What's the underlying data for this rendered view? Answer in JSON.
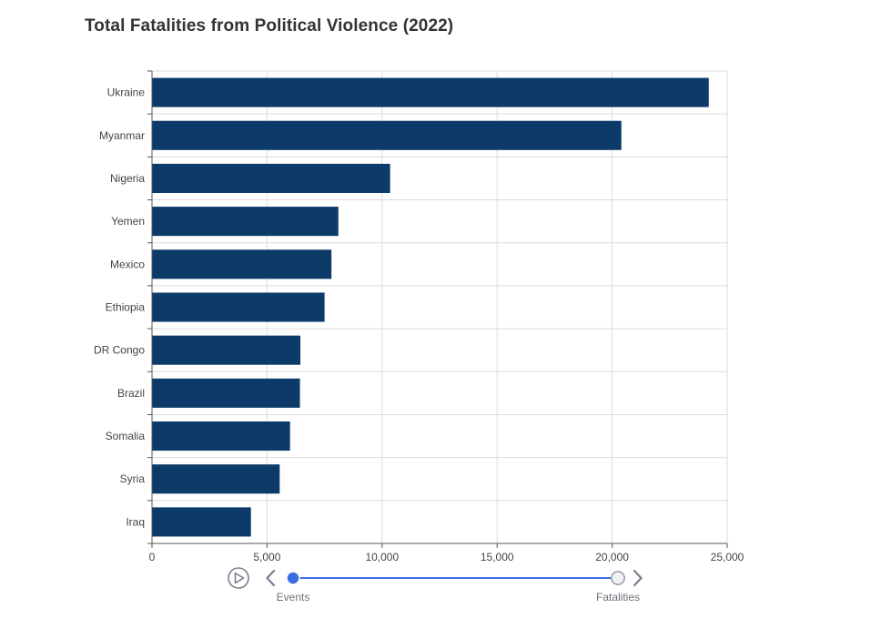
{
  "colors": {
    "bar": "#0d3b69",
    "grid": "#dcdcdc",
    "axis": "#555555",
    "timeline_accent": "#3d6ee0",
    "timeline_control": "#7a7f8e"
  },
  "chart_data": {
    "type": "bar",
    "orientation": "horizontal",
    "title": "Total Fatalities from Political Violence (2022)",
    "xlabel": "",
    "ylabel": "",
    "xlim": [
      0,
      25000
    ],
    "x_ticks": [
      "0",
      "5,000",
      "10,000",
      "15,000",
      "20,000",
      "25,000"
    ],
    "x_tick_values": [
      0,
      5000,
      10000,
      15000,
      20000,
      25000
    ],
    "grid": true,
    "categories": [
      "Ukraine",
      "Myanmar",
      "Nigeria",
      "Yemen",
      "Mexico",
      "Ethiopia",
      "DR Congo",
      "Brazil",
      "Somalia",
      "Syria",
      "Iraq"
    ],
    "values": [
      24200,
      20400,
      10350,
      8100,
      7800,
      7500,
      6450,
      6430,
      6000,
      5550,
      4300
    ]
  },
  "timeline": {
    "play_icon": "play-icon",
    "prev_icon": "chevron-left-icon",
    "next_icon": "chevron-right-icon",
    "points": [
      "Events",
      "Fatalities"
    ],
    "current": "Events"
  }
}
